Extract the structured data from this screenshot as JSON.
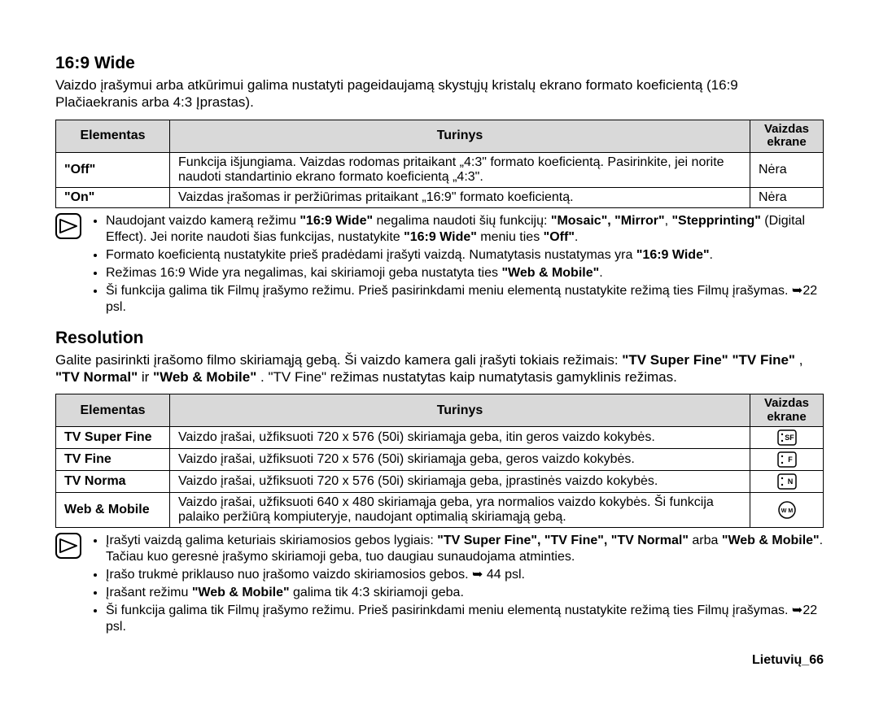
{
  "section1": {
    "title": "16:9 Wide",
    "intro": "Vaizdo įrašymui arba atkūrimui galima nustatyti pageidaujamą skystųjų kristalų ekrano formato koeficientą (16:9 Plačiaekranis arba 4:3 Įprastas).",
    "headers": {
      "c1": "Elementas",
      "c2": "Turinys",
      "c3": "Vaizdas ekrane"
    },
    "rows": [
      {
        "c1": "\"Off\"",
        "c2": "Funkcija išjungiama. Vaizdas rodomas pritaikant „4:3\" formato koeficientą. Pasirinkite, jei norite naudoti standartinio ekrano formato koeficientą „4:3\".",
        "c3": "Nėra"
      },
      {
        "c1": "\"On\"",
        "c2": "Vaizdas įrašomas ir peržiūrimas pritaikant „16:9\" formato koeficientą.",
        "c3": "Nėra"
      }
    ],
    "notes": [
      "Naudojant vaizdo kamerą režimu <b>\"16:9 Wide\"</b> negalima naudoti šių funkcijų: <b>\"Mosaic\", \"Mirror\"</b>, <b>\"Stepprinting\"</b> (Digital Effect). Jei norite naudoti šias funkcijas, nustatykite <b>\"16:9 Wide\"</b> meniu ties <b>\"Off\"</b>.",
      "Formato koeficientą nustatykite prieš pradėdami įrašyti vaizdą. Numatytasis nustatymas yra <b>\"16:9 Wide\"</b>.",
      "Režimas 16:9 Wide yra negalimas, kai skiriamoji geba nustatyta ties <b>\"Web & Mobile\"</b>.",
      "Ši funkcija galima tik Filmų įrašymo režimu. Prieš pasirinkdami meniu elementą nustatykite režimą ties Filmų įrašymas. ➥22 psl."
    ]
  },
  "section2": {
    "title": "Resolution",
    "intro": "Galite pasirinkti įrašomo filmo skiriamąją gebą. Ši vaizdo kamera gali įrašyti tokiais režimais: <b>\"TV Super Fine\"</b>   <b>\"TV Fine\"</b> , <b>\"TV Normal\"</b> ir <b>\"Web & Mobile\"</b> . \"TV Fine\" režimas nustatytas kaip numatytasis gamyklinis režimas.",
    "headers": {
      "c1": "Elementas",
      "c2": "Turinys",
      "c3": "Vaizdas ekrane"
    },
    "rows": [
      {
        "c1": "TV Super Fine",
        "c2": "Vaizdo įrašai, užfiksuoti  720 x 576 (50i) skiriamąja geba,  itin geros vaizdo kokybės.",
        "icon": "sf"
      },
      {
        "c1": "TV Fine",
        "c2": "Vaizdo įrašai, užfiksuoti  720 x 576 (50i) skiriamąja geba, geros vaizdo kokybės.",
        "icon": "f"
      },
      {
        "c1": "TV Norma",
        "c2": "Vaizdo įrašai, užfiksuoti  720 x 576 (50i) skiriamąja geba, įprastinės vaizdo kokybės.",
        "icon": "n"
      },
      {
        "c1": "Web & Mobile",
        "c2": "Vaizdo įrašai, užfiksuoti  640 x 480 skiriamąja geba, yra normalios vaizdo kokybės. Ši funkcija palaiko peržiūrą kompiuteryje, naudojant optimalią skiriamąją gebą.",
        "icon": "wm"
      }
    ],
    "notes": [
      "Įrašyti vaizdą galima keturiais skiriamosios gebos lygiais: <b>\"TV Super Fine\", \"TV Fine\", \"TV Normal\"</b> arba <b>\"Web & Mobile\"</b>. Tačiau kuo geresnė įrašymo skiriamoji geba, tuo daugiau sunaudojama atminties.",
      "Įrašo trukmė  priklauso nuo įrašomo vaizdo skiriamosios gebos. ➥ 44 psl.",
      "Įrašant režimu <b>\"Web & Mobile\"</b> galima tik 4:3 skiriamoji geba.",
      "Ši funkcija galima tik Filmų įrašymo režimu. Prieš pasirinkdami meniu elementą nustatykite režimą ties Filmų įrašymas. ➥22 psl."
    ]
  },
  "footer": "Lietuvių_66",
  "style": {
    "header_bg": "#d9d9d9",
    "border": "#000000",
    "font_body": 17,
    "font_table": 16
  }
}
